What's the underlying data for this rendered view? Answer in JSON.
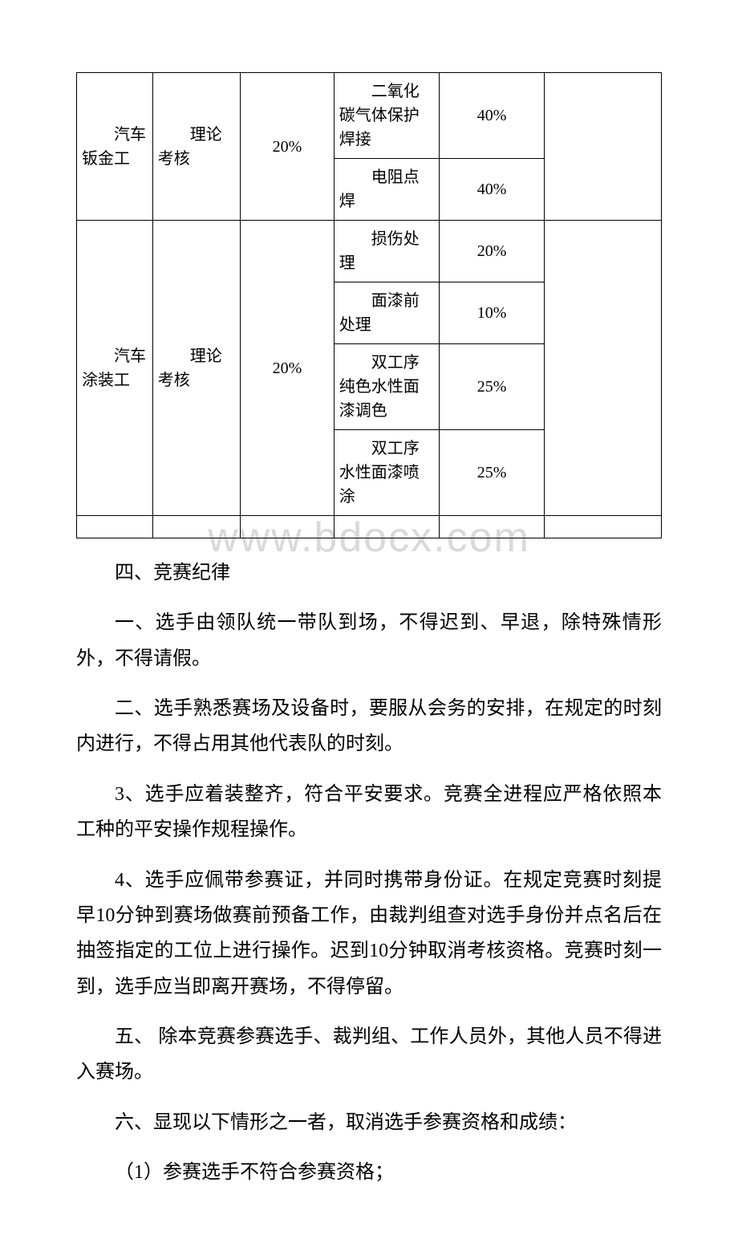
{
  "watermark": "www.bdocx.com",
  "table": {
    "rows": [
      {
        "c1": "汽车钣金工",
        "c2": "理论考核",
        "c3": "20%",
        "c4": "二氧化碳气体保护焊接",
        "c5": "40%",
        "c6": "",
        "c1_rowspan": 2,
        "c2_rowspan": 2,
        "c3_rowspan": 2,
        "c6_rowspan": 2
      },
      {
        "c4": "电阻点焊",
        "c5": "40%"
      },
      {
        "c1": "汽车涂装工",
        "c2": "理论考核",
        "c3": "20%",
        "c4": "损伤处理",
        "c5": "20%",
        "c6": "",
        "c1_rowspan": 4,
        "c2_rowspan": 4,
        "c3_rowspan": 4,
        "c6_rowspan": 4
      },
      {
        "c4": "面漆前处理",
        "c5": "10%"
      },
      {
        "c4": "双工序纯色水性面漆调色",
        "c5": "25%"
      },
      {
        "c4": "双工序水性面漆喷涂",
        "c5": "25%"
      }
    ]
  },
  "section_title": "四、竞赛纪律",
  "paragraphs": {
    "p1": "一、选手由领队统一带队到场，不得迟到、早退，除特殊情形外，不得请假。",
    "p2": "二、选手熟悉赛场及设备时，要服从会务的安排，在规定的时刻内进行，不得占用其他代表队的时刻。",
    "p3": "3、选手应着装整齐，符合平安要求。竞赛全进程应严格依照本工种的平安操作规程操作。",
    "p4": "4、选手应佩带参赛证，并同时携带身份证。在规定竞赛时刻提早10分钟到赛场做赛前预备工作，由裁判组查对选手身份并点名后在抽签指定的工位上进行操作。迟到10分钟取消考核资格。竞赛时刻一到，选手应当即离开赛场，不得停留。",
    "p5": "五、 除本竞赛参赛选手、裁判组、工作人员外，其他人员不得进入赛场。",
    "p6": "六、显现以下情形之一者，取消选手参赛资格和成绩：",
    "p7": "（1）参赛选手不符合参赛资格；"
  }
}
